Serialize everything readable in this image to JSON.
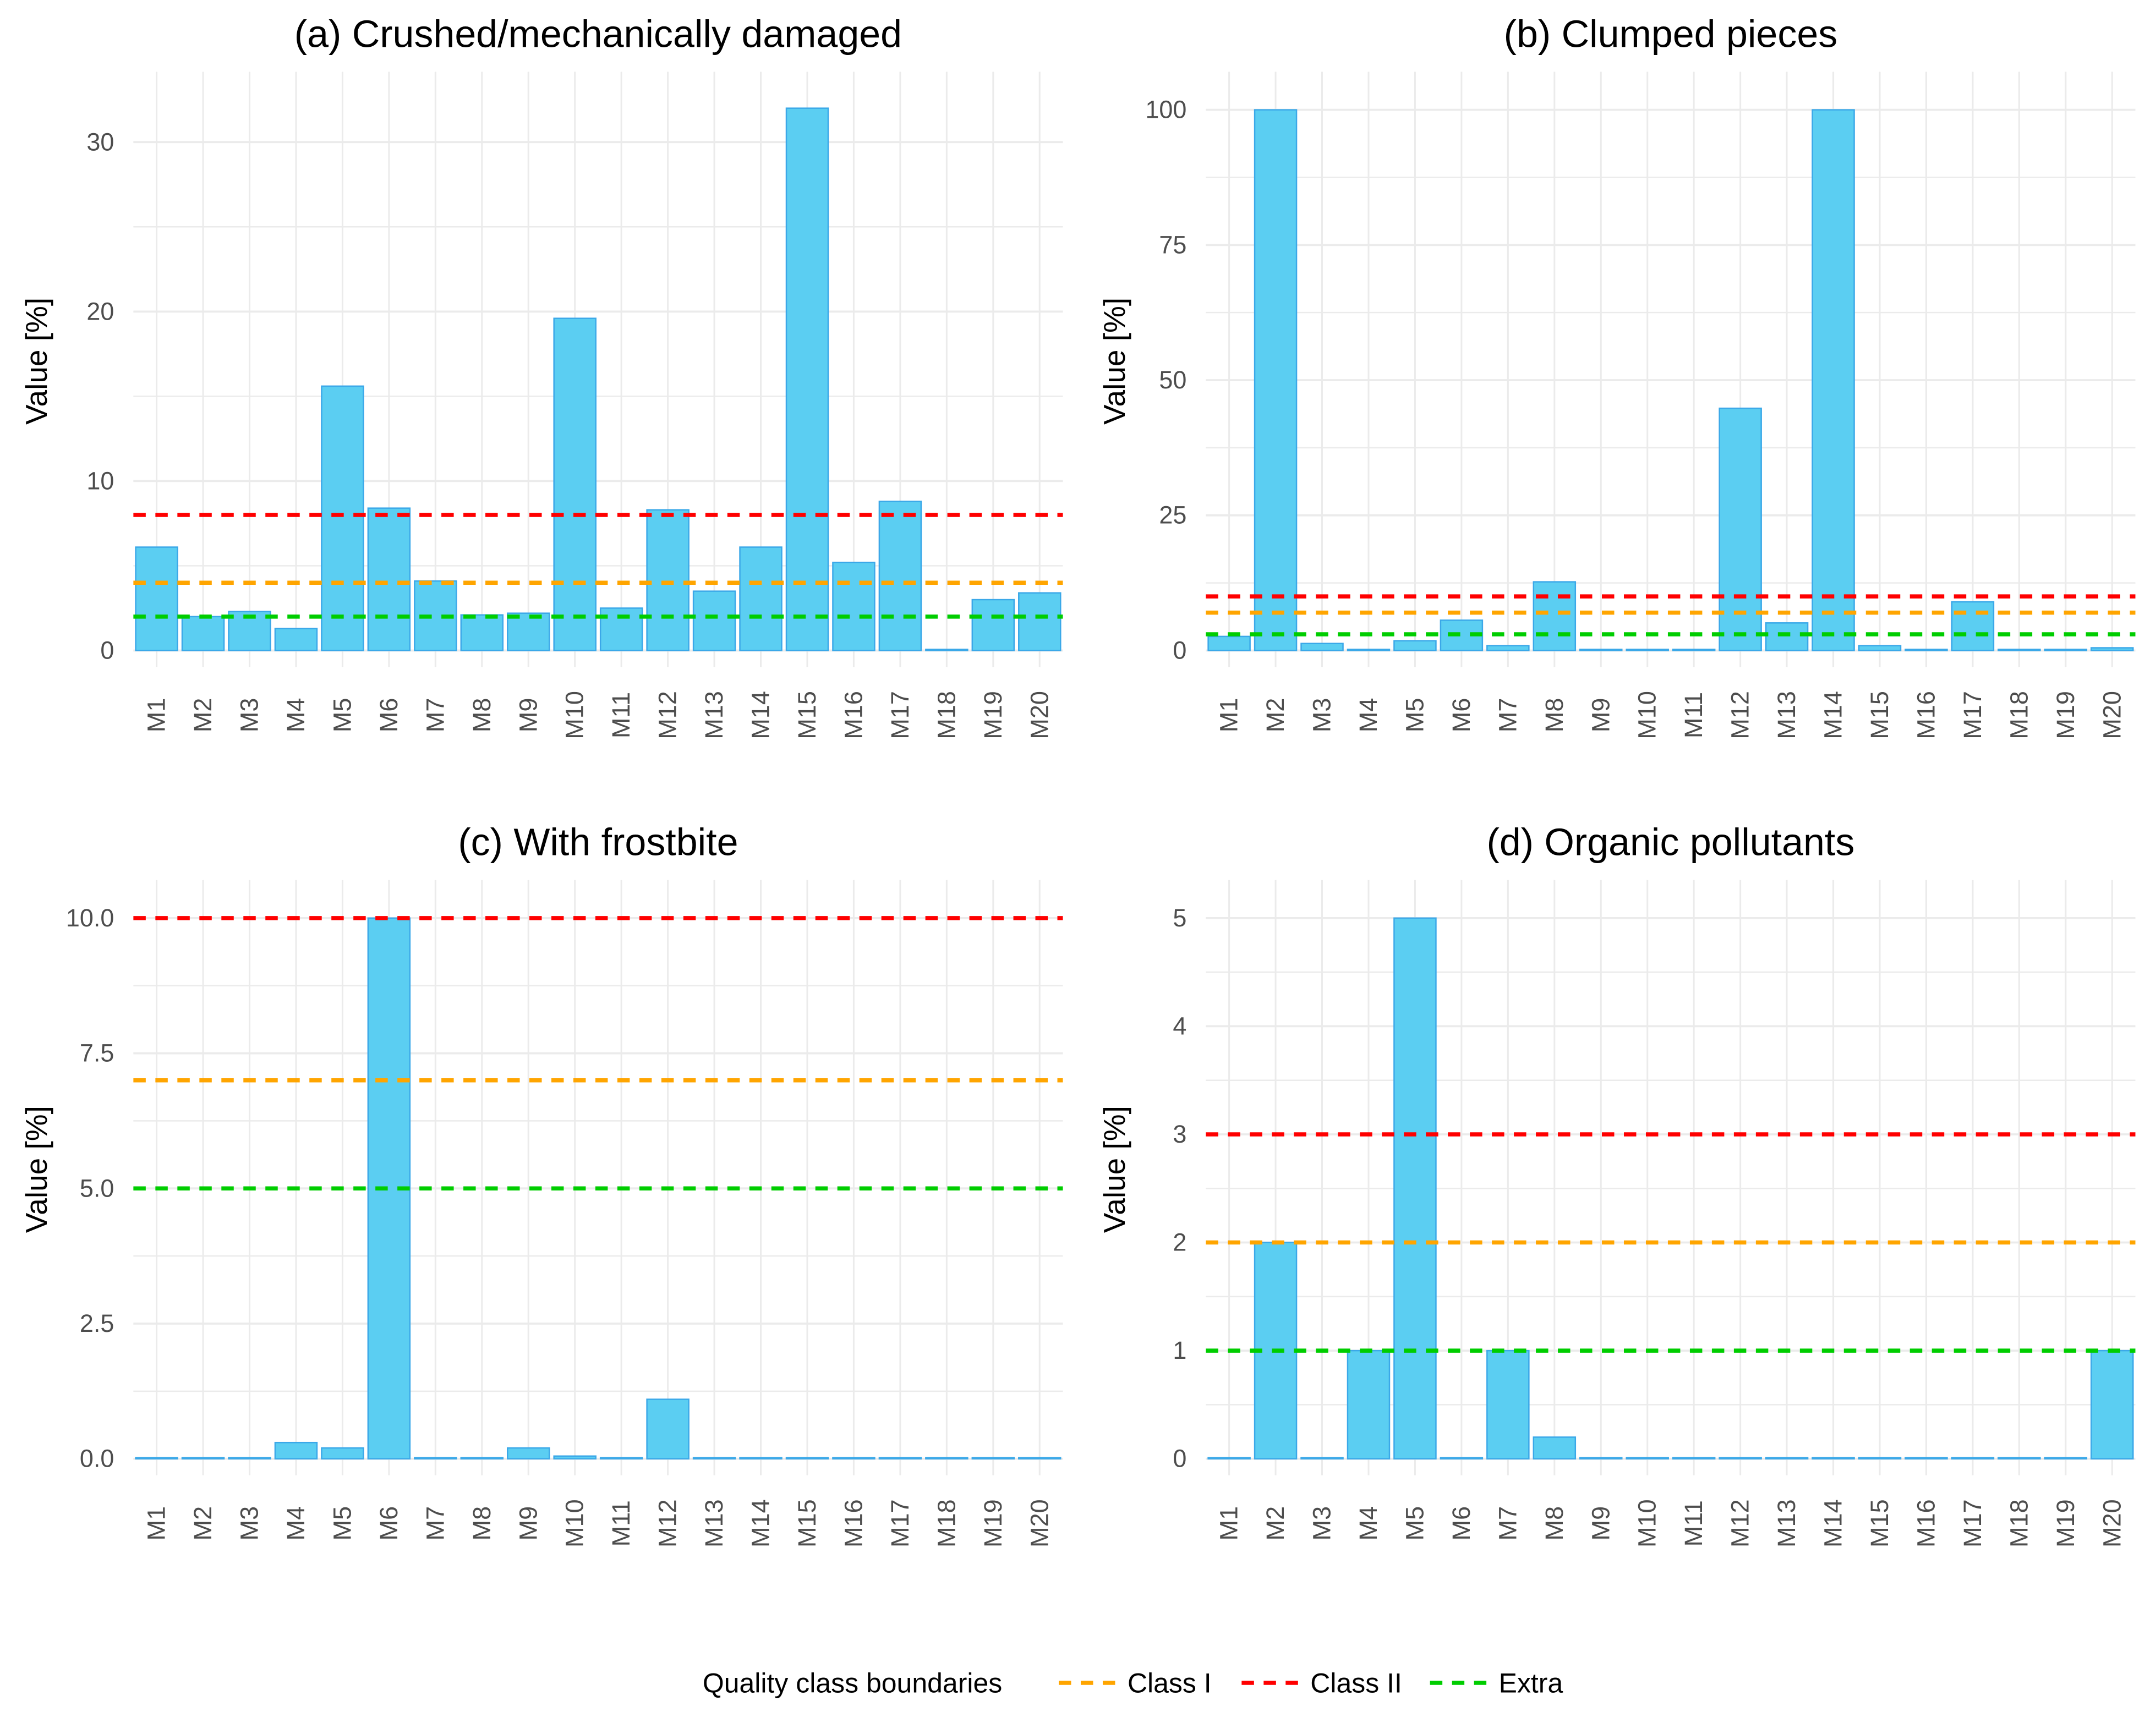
{
  "chart_data": [
    {
      "type": "bar",
      "title": "(a) Crushed/mechanically damaged",
      "xlabel": "",
      "ylabel": "Value [%]",
      "ylim": [
        0,
        33.5
      ],
      "yticks": [
        0,
        10,
        20,
        30
      ],
      "ytick_labels": [
        "0",
        "10",
        "20",
        "30"
      ],
      "grid": true,
      "categories": [
        "M1",
        "M2",
        "M3",
        "M4",
        "M5",
        "M6",
        "M7",
        "M8",
        "M9",
        "M10",
        "M11",
        "M12",
        "M13",
        "M14",
        "M15",
        "M16",
        "M17",
        "M18",
        "M19",
        "M20"
      ],
      "values": [
        6.1,
        2.0,
        2.3,
        1.3,
        15.6,
        8.4,
        4.1,
        2.1,
        2.2,
        19.6,
        2.5,
        8.3,
        3.5,
        6.1,
        32.0,
        5.2,
        8.8,
        0.05,
        3.0,
        3.4
      ],
      "hlines": {
        "Class I": 4,
        "Class II": 8,
        "Extra": 2
      }
    },
    {
      "type": "bar",
      "title": "(b) Clumped pieces",
      "xlabel": "",
      "ylabel": "Value [%]",
      "ylim": [
        0,
        105
      ],
      "yticks": [
        0,
        25,
        50,
        75,
        100
      ],
      "ytick_labels": [
        "0",
        "25",
        "50",
        "75",
        "100"
      ],
      "grid": true,
      "categories": [
        "M1",
        "M2",
        "M3",
        "M4",
        "M5",
        "M6",
        "M7",
        "M8",
        "M9",
        "M10",
        "M11",
        "M12",
        "M13",
        "M14",
        "M15",
        "M16",
        "M17",
        "M18",
        "M19",
        "M20"
      ],
      "values": [
        2.6,
        100,
        1.3,
        0,
        1.8,
        5.6,
        0.9,
        12.7,
        0,
        0,
        0,
        44.8,
        5.1,
        100,
        0.9,
        0,
        9.0,
        0,
        0,
        0.5
      ],
      "hlines": {
        "Class I": 7,
        "Class II": 10,
        "Extra": 3
      }
    },
    {
      "type": "bar",
      "title": "(c) With frostbite",
      "xlabel": "",
      "ylabel": "Value [%]",
      "ylim": [
        0,
        10.5
      ],
      "yticks": [
        0,
        2.5,
        5,
        7.5,
        10
      ],
      "ytick_labels": [
        "0.0",
        "2.5",
        "5.0",
        "7.5",
        "10.0"
      ],
      "grid": true,
      "categories": [
        "M1",
        "M2",
        "M3",
        "M4",
        "M5",
        "M6",
        "M7",
        "M8",
        "M9",
        "M10",
        "M11",
        "M12",
        "M13",
        "M14",
        "M15",
        "M16",
        "M17",
        "M18",
        "M19",
        "M20"
      ],
      "values": [
        0,
        0,
        0,
        0.3,
        0.2,
        10,
        0,
        0,
        0.2,
        0.05,
        0,
        1.1,
        0,
        0,
        0,
        0,
        0,
        0,
        0,
        0
      ],
      "hlines": {
        "Class I": 7,
        "Class II": 10,
        "Extra": 5
      }
    },
    {
      "type": "bar",
      "title": "(d) Organic pollutants",
      "xlabel": "",
      "ylabel": "Value [%]",
      "ylim": [
        0,
        5.25
      ],
      "yticks": [
        0,
        1,
        2,
        3,
        4,
        5
      ],
      "ytick_labels": [
        "0",
        "1",
        "2",
        "3",
        "4",
        "5"
      ],
      "grid": true,
      "categories": [
        "M1",
        "M2",
        "M3",
        "M4",
        "M5",
        "M6",
        "M7",
        "M8",
        "M9",
        "M10",
        "M11",
        "M12",
        "M13",
        "M14",
        "M15",
        "M16",
        "M17",
        "M18",
        "M19",
        "M20"
      ],
      "values": [
        0,
        2,
        0,
        1,
        5,
        0,
        1,
        0.2,
        0,
        0,
        0,
        0,
        0,
        0,
        0,
        0,
        0,
        0,
        0,
        1
      ],
      "hlines": {
        "Class I": 2,
        "Class II": 3,
        "Extra": 1
      }
    }
  ],
  "legend": {
    "title": "Quality class boundaries",
    "placement": "bottom",
    "entries": [
      {
        "label": "Class I",
        "color": "#FFA500"
      },
      {
        "label": "Class II",
        "color": "#FF0000"
      },
      {
        "label": "Extra",
        "color": "#00CD00"
      }
    ]
  },
  "colors": {
    "bar_fill": "#5BCEF2",
    "bar_stroke": "#3BA8E8",
    "grid": "#EBEBEB"
  }
}
